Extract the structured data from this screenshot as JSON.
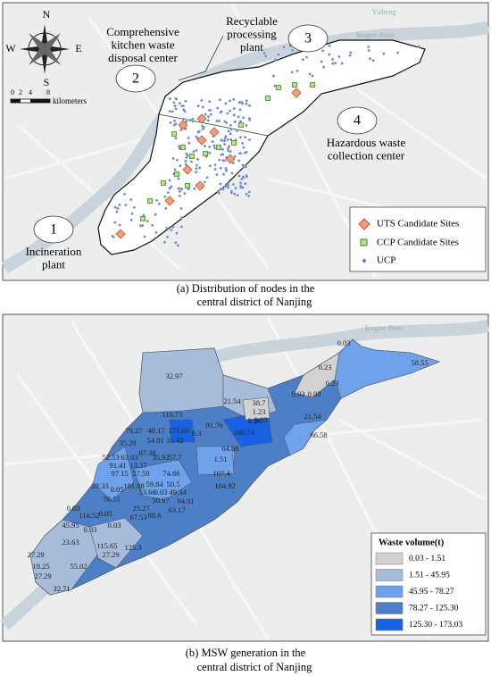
{
  "panel_a": {
    "compass": {
      "n": "N",
      "e": "E",
      "s": "S",
      "w": "W"
    },
    "scale": {
      "ticks": [
        "0",
        "2",
        "4",
        "8"
      ],
      "unit": "kilometers"
    },
    "basemap": [
      "Yizheng",
      "Yangtze River",
      "Jurong"
    ],
    "facilities": [
      {
        "number": "1",
        "lines": [
          "Incineration",
          "plant"
        ]
      },
      {
        "number": "2",
        "lines": [
          "Comprehensive",
          "kitchen waste",
          "disposal center"
        ]
      },
      {
        "number": "3",
        "lines": [
          "Recyclable",
          "processing",
          "plant"
        ]
      },
      {
        "number": "4",
        "lines": [
          "Hazardous waste",
          "collection center"
        ]
      }
    ],
    "legend": [
      "UTS Candidate Sites",
      "CCP Candidate Sites",
      "UCP"
    ],
    "caption": [
      "(a)  Distribution of nodes in the",
      "central district of Nanjing"
    ]
  },
  "panel_b": {
    "basemap": [
      "Yangtze River"
    ],
    "district_labels": [
      "0.03",
      "58.55",
      "0.23",
      "32.97",
      "0.23",
      "38.7",
      "0.93",
      "0.03",
      "21.54",
      "1.23",
      "21.54",
      "110.73",
      "0.28",
      "0.03",
      "166.74",
      "66.58",
      "78.27",
      "48.17",
      "173.03",
      "91.76",
      "35.29",
      "54.01",
      "31.42",
      "0.3",
      "64.08",
      "52.53",
      "63.03",
      "87.38",
      "35.92",
      "57.7",
      "1.51",
      "91.41",
      "13.37",
      "107.4",
      "104.92",
      "97.15",
      "57.59",
      "74.66",
      "29.33",
      "101.88",
      "59.84",
      "50.5",
      "0.05",
      "53.66",
      "0.03",
      "49.34",
      "76.55",
      "50.97",
      "94.01",
      "0.03",
      "25.27",
      "63.17",
      "0.05",
      "116.52",
      "67.53",
      "88.6",
      "45.95",
      "0.03",
      "0.03",
      "23.63",
      "115.65",
      "125.3",
      "27.29",
      "27.29",
      "55.02",
      "18.25",
      "27.29",
      "32.71"
    ],
    "legend": {
      "title": "Waste volume(t)",
      "classes": [
        {
          "label": "0.03 - 1.51",
          "color": "#d2d2d2"
        },
        {
          "label": "1.51 - 45.95",
          "color": "#a7bcdb"
        },
        {
          "label": "45.95 - 78.27",
          "color": "#6ea2ea"
        },
        {
          "label": "78.27 - 125.30",
          "color": "#4d7fc6"
        },
        {
          "label": "125.30 - 173.03",
          "color": "#1662e2"
        }
      ]
    },
    "caption": [
      "(b)  MSW generation in the",
      "central district of Nanjing"
    ]
  }
}
